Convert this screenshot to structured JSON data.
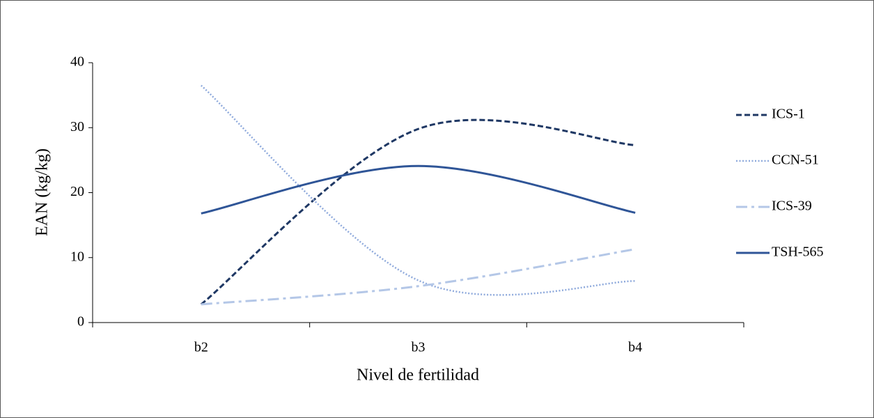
{
  "chart_data": {
    "type": "line",
    "x_label": "Nivel de fertilidad",
    "y_label": "EAN (kg/kg)",
    "categories": [
      "b2",
      "b3",
      "b4"
    ],
    "series": [
      {
        "name": "ICS-1",
        "color": "#1f3864",
        "style": "dashed",
        "values": [
          2.8,
          29.8,
          27.3
        ]
      },
      {
        "name": "CCN-51",
        "color": "#8faadc",
        "style": "dotted",
        "values": [
          36.5,
          6.5,
          6.4
        ]
      },
      {
        "name": "ICS-39",
        "color": "#b4c7e7",
        "style": "dashdot",
        "values": [
          2.8,
          5.6,
          11.3
        ]
      },
      {
        "name": "TSH-565",
        "color": "#2f5597",
        "style": "solid",
        "values": [
          16.8,
          24.1,
          16.9
        ]
      }
    ],
    "ylim": [
      0,
      40
    ],
    "yticks": [
      0,
      10,
      20,
      30,
      40
    ],
    "smooth": true,
    "grid": false,
    "legend": "right"
  }
}
